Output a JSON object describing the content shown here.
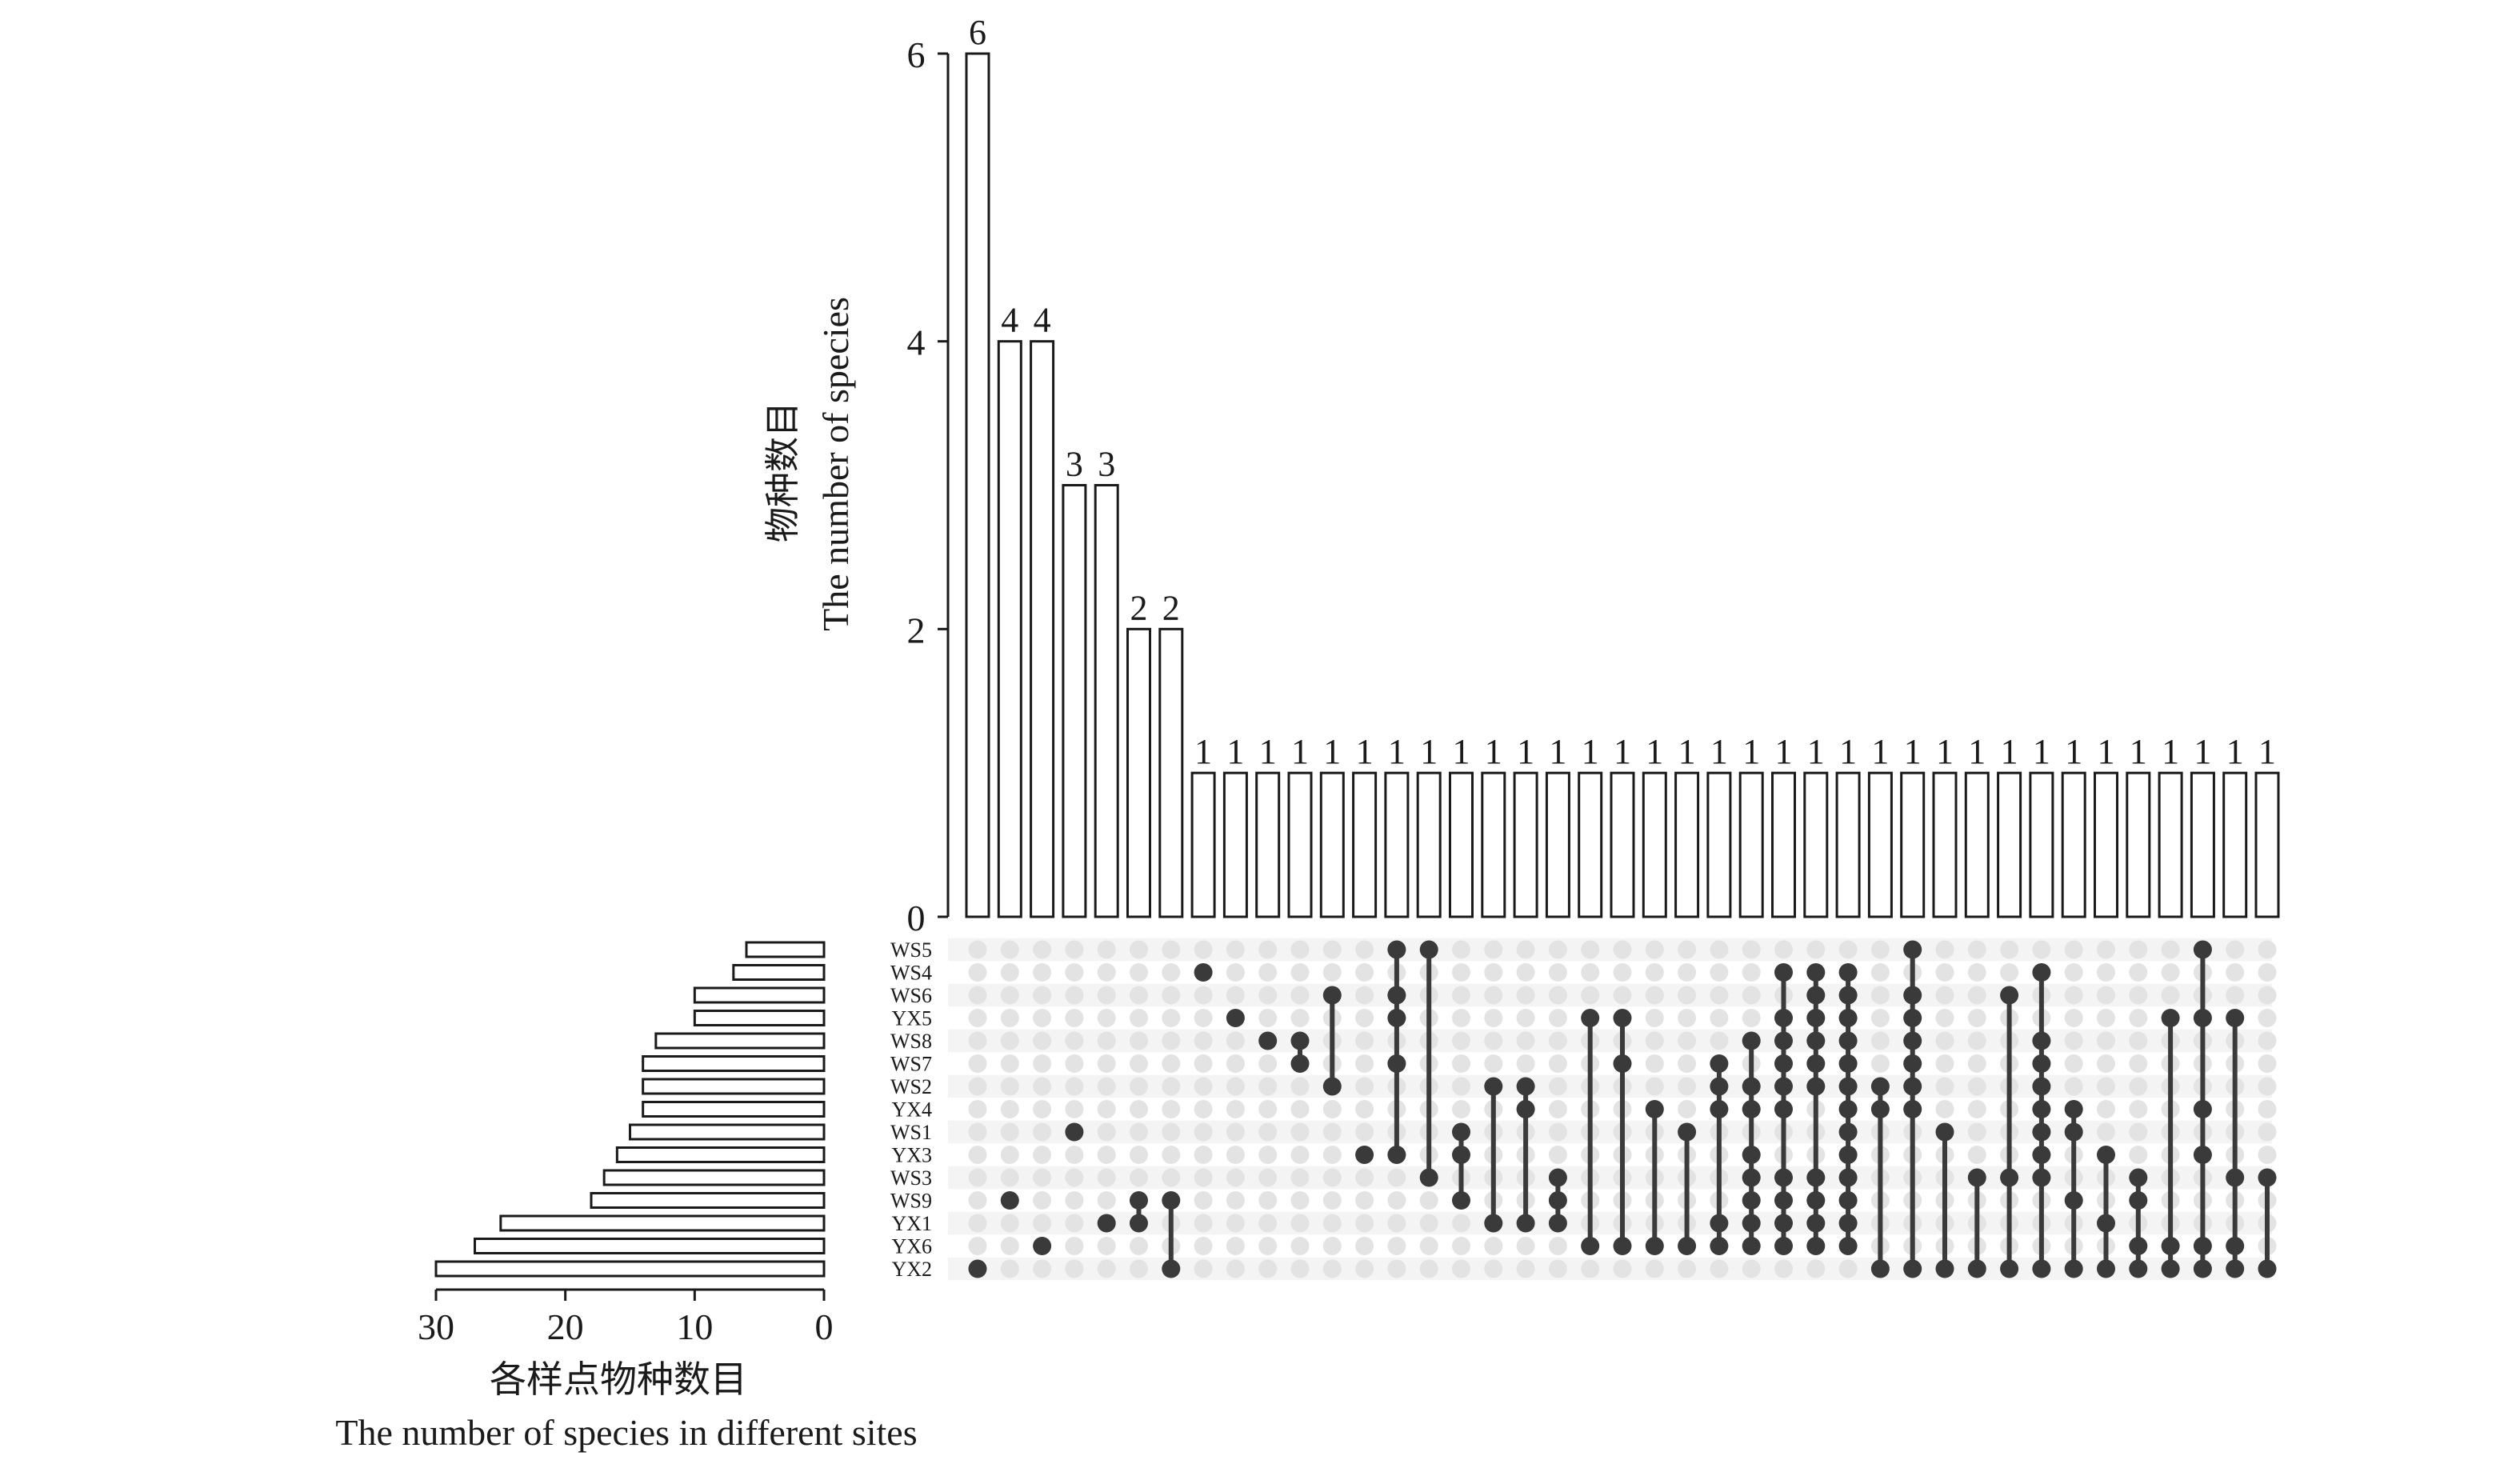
{
  "chart_data": {
    "type": "bar",
    "subtype": "upset",
    "intersection_bars": {
      "ylabel_zh": "物种数目",
      "ylabel_en": "The number of species",
      "ylim": [
        0,
        6
      ],
      "yticks": [
        "0",
        "2",
        "4",
        "6"
      ],
      "values": [
        6,
        4,
        4,
        3,
        3,
        2,
        2,
        1,
        1,
        1,
        1,
        1,
        1,
        1,
        1,
        1,
        1,
        1,
        1,
        1,
        1,
        1,
        1,
        1,
        1,
        1,
        1,
        1,
        1,
        1,
        1,
        1,
        1,
        1,
        1,
        1,
        1,
        1,
        1,
        1,
        1
      ]
    },
    "set_bars": {
      "xlabel_zh": "各样点物种数目",
      "xlabel_en": "The number of species in different sites",
      "xticks": [
        "30",
        "20",
        "10",
        "0"
      ],
      "xlim": [
        0,
        30
      ],
      "sets": [
        "WS5",
        "WS4",
        "WS6",
        "YX5",
        "WS8",
        "WS7",
        "WS2",
        "YX4",
        "WS1",
        "YX3",
        "WS3",
        "WS9",
        "YX1",
        "YX6",
        "YX2"
      ],
      "sizes": [
        6,
        7,
        10,
        10,
        13,
        14,
        14,
        14,
        15,
        16,
        17,
        18,
        25,
        27,
        30
      ]
    },
    "intersections": [
      [
        "YX2"
      ],
      [
        "WS9"
      ],
      [
        "YX6"
      ],
      [
        "WS1"
      ],
      [
        "YX1"
      ],
      [
        "WS9",
        "YX1"
      ],
      [
        "WS9",
        "YX2"
      ],
      [
        "WS4"
      ],
      [
        "YX5"
      ],
      [
        "WS8"
      ],
      [
        "WS8",
        "WS7"
      ],
      [
        "WS6",
        "WS2"
      ],
      [
        "YX3"
      ],
      [
        "WS5",
        "WS6",
        "YX5",
        "WS7",
        "YX3"
      ],
      [
        "WS5",
        "WS3"
      ],
      [
        "WS1",
        "YX3",
        "WS9"
      ],
      [
        "WS2",
        "YX1"
      ],
      [
        "WS2",
        "YX4",
        "YX1"
      ],
      [
        "WS3",
        "WS9",
        "YX1"
      ],
      [
        "YX5",
        "YX6"
      ],
      [
        "YX5",
        "WS7",
        "YX6"
      ],
      [
        "YX4",
        "YX6"
      ],
      [
        "WS1",
        "YX6"
      ],
      [
        "WS7",
        "WS2",
        "YX4",
        "YX1",
        "YX6"
      ],
      [
        "WS8",
        "WS2",
        "YX4",
        "YX3",
        "WS3",
        "WS9",
        "YX1",
        "YX6"
      ],
      [
        "WS4",
        "YX5",
        "WS8",
        "WS7",
        "WS2",
        "YX4",
        "WS3",
        "WS9",
        "YX1",
        "YX6"
      ],
      [
        "WS4",
        "WS6",
        "YX5",
        "WS8",
        "WS7",
        "WS2",
        "WS3",
        "WS9",
        "YX1",
        "YX6"
      ],
      [
        "WS4",
        "WS6",
        "YX5",
        "WS8",
        "WS7",
        "WS2",
        "YX4",
        "WS1",
        "YX3",
        "WS3",
        "WS9",
        "YX1",
        "YX6"
      ],
      [
        "WS2",
        "YX4",
        "YX2"
      ],
      [
        "WS5",
        "WS6",
        "YX5",
        "WS8",
        "WS7",
        "WS2",
        "YX4",
        "YX2"
      ],
      [
        "WS1",
        "YX2"
      ],
      [
        "WS3",
        "YX2"
      ],
      [
        "WS6",
        "WS3",
        "YX2"
      ],
      [
        "WS4",
        "WS8",
        "WS7",
        "WS2",
        "YX4",
        "WS1",
        "YX3",
        "WS3",
        "YX2"
      ],
      [
        "YX4",
        "WS1",
        "WS9",
        "YX2"
      ],
      [
        "YX3",
        "YX1",
        "YX2"
      ],
      [
        "WS3",
        "WS9",
        "YX6",
        "YX2"
      ],
      [
        "YX5",
        "YX6",
        "YX2"
      ],
      [
        "WS5",
        "YX5",
        "YX4",
        "YX3",
        "YX6",
        "YX2"
      ],
      [
        "YX5",
        "WS3",
        "YX6",
        "YX2"
      ],
      [
        "WS3",
        "YX2"
      ]
    ],
    "colors": {
      "bar_fill": "#ffffff",
      "bar_stroke": "#1a1a1a",
      "dot_active": "#3a3a3a",
      "dot_inactive": "#e3e3e3",
      "row_band": "#f4f4f4"
    }
  }
}
